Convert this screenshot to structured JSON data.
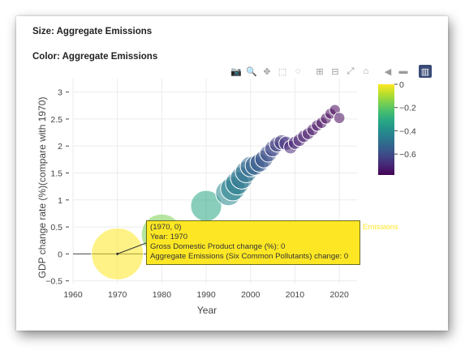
{
  "headings": {
    "size": "Size: Aggregate Emissions",
    "color": "Color: Aggregate Emissions"
  },
  "modebar": [
    {
      "name": "camera-icon",
      "glyph": "📷"
    },
    {
      "name": "zoom-icon",
      "glyph": "🔍"
    },
    {
      "name": "pan-icon",
      "glyph": "✥"
    },
    {
      "name": "box-select-icon",
      "glyph": "⬚"
    },
    {
      "name": "lasso-icon",
      "glyph": "◌"
    },
    {
      "name": "zoom-in-icon",
      "glyph": "⊞"
    },
    {
      "name": "zoom-out-icon",
      "glyph": "⊟"
    },
    {
      "name": "autoscale-icon",
      "glyph": "⤢"
    },
    {
      "name": "home-icon",
      "glyph": "⌂"
    },
    {
      "name": "spike-lines-icon",
      "glyph": "◀"
    },
    {
      "name": "compare-hover-icon",
      "glyph": "▬"
    },
    {
      "name": "plotly-logo-icon",
      "glyph": "▥"
    }
  ],
  "hover": {
    "title": "(1970, 0)",
    "line1": "Year: 1970",
    "line2": "Gross Domestic Product change (%): 0",
    "line3": "Aggregate Emissions (Six Common Pollutants) change: 0",
    "name": "Emissions"
  },
  "chart_data": {
    "type": "scatter",
    "xlabel": "Year",
    "ylabel": "GDP change rate (%)(compare with 1970)",
    "xlim": [
      1960,
      2024
    ],
    "ylim": [
      -0.55,
      3.25
    ],
    "xticks": [
      1960,
      1970,
      1980,
      1990,
      2000,
      2010,
      2020
    ],
    "yticks": [
      -0.5,
      0,
      0.5,
      1,
      1.5,
      2,
      2.5,
      3
    ],
    "ytick_labels": [
      "−0.5",
      "0",
      "0.5",
      "1",
      "1.5",
      "2",
      "2.5",
      "3"
    ],
    "colorbar": {
      "range": [
        -0.78,
        0
      ],
      "ticks": [
        0,
        -0.2,
        -0.4,
        -0.6
      ],
      "tick_labels": [
        "0",
        "−0.2",
        "−0.4",
        "−0.6"
      ]
    },
    "points": [
      {
        "x": 1970,
        "y": 0.0,
        "c": 0.0
      },
      {
        "x": 1980,
        "y": 0.36,
        "c": -0.16
      },
      {
        "x": 1990,
        "y": 0.89,
        "c": -0.32
      },
      {
        "x": 1995,
        "y": 1.13,
        "c": -0.42
      },
      {
        "x": 1996,
        "y": 1.21,
        "c": -0.44
      },
      {
        "x": 1997,
        "y": 1.31,
        "c": -0.46
      },
      {
        "x": 1998,
        "y": 1.41,
        "c": -0.48
      },
      {
        "x": 1999,
        "y": 1.52,
        "c": -0.5
      },
      {
        "x": 2000,
        "y": 1.62,
        "c": -0.52
      },
      {
        "x": 2001,
        "y": 1.64,
        "c": -0.54
      },
      {
        "x": 2002,
        "y": 1.69,
        "c": -0.56
      },
      {
        "x": 2003,
        "y": 1.76,
        "c": -0.58
      },
      {
        "x": 2004,
        "y": 1.86,
        "c": -0.6
      },
      {
        "x": 2005,
        "y": 1.95,
        "c": -0.62
      },
      {
        "x": 2006,
        "y": 2.03,
        "c": -0.64
      },
      {
        "x": 2007,
        "y": 2.07,
        "c": -0.65
      },
      {
        "x": 2008,
        "y": 2.05,
        "c": -0.67
      },
      {
        "x": 2009,
        "y": 1.98,
        "c": -0.69
      },
      {
        "x": 2010,
        "y": 2.06,
        "c": -0.7
      },
      {
        "x": 2011,
        "y": 2.11,
        "c": -0.71
      },
      {
        "x": 2012,
        "y": 2.18,
        "c": -0.72
      },
      {
        "x": 2013,
        "y": 2.23,
        "c": -0.73
      },
      {
        "x": 2014,
        "y": 2.3,
        "c": -0.74
      },
      {
        "x": 2015,
        "y": 2.38,
        "c": -0.75
      },
      {
        "x": 2016,
        "y": 2.43,
        "c": -0.755
      },
      {
        "x": 2017,
        "y": 2.51,
        "c": -0.76
      },
      {
        "x": 2018,
        "y": 2.6,
        "c": -0.765
      },
      {
        "x": 2019,
        "y": 2.67,
        "c": -0.77
      },
      {
        "x": 2020,
        "y": 2.52,
        "c": -0.76
      }
    ]
  }
}
